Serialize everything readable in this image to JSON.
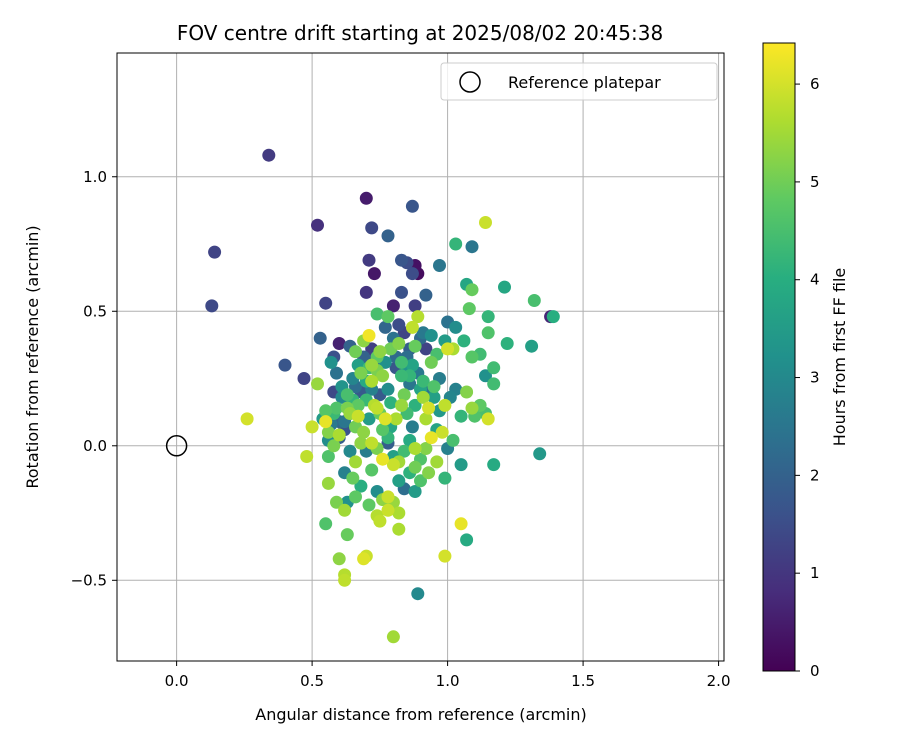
{
  "chart_data": {
    "type": "scatter",
    "title": "FOV centre drift starting at 2025/08/02 20:45:38",
    "xlabel": "Angular distance from reference (arcmin)",
    "ylabel": "Rotation from reference (arcmin)",
    "xlim": [
      -0.22,
      2.02
    ],
    "ylim": [
      -0.8,
      1.46
    ],
    "xticks": [
      0.0,
      0.5,
      1.0,
      1.5,
      2.0
    ],
    "xtick_labels": [
      "0.0",
      "0.5",
      "1.0",
      "1.5",
      "2.0"
    ],
    "yticks": [
      -0.5,
      0.0,
      0.5,
      1.0
    ],
    "ytick_labels": [
      "−0.5",
      "0.0",
      "0.5",
      "1.0"
    ],
    "grid": true,
    "colormap": "viridis",
    "colorbar": {
      "label": "Hours from first FF file",
      "range": [
        0,
        6.42
      ],
      "ticks": [
        0,
        1,
        2,
        3,
        4,
        5,
        6
      ],
      "tick_labels": [
        "0",
        "1",
        "2",
        "3",
        "4",
        "5",
        "6"
      ]
    },
    "legend": {
      "placement": "top-right",
      "entries": [
        "Reference platepar"
      ]
    },
    "reference_point": {
      "x": 0.0,
      "y": 0.0,
      "label": "Reference platepar"
    },
    "points": [
      [
        0.34,
        1.08,
        1.1
      ],
      [
        0.14,
        0.72,
        1.3
      ],
      [
        0.13,
        0.52,
        1.4
      ],
      [
        0.52,
        0.82,
        0.9
      ],
      [
        0.7,
        0.92,
        0.5
      ],
      [
        0.72,
        0.81,
        1.4
      ],
      [
        0.87,
        0.89,
        1.7
      ],
      [
        0.78,
        0.78,
        2.0
      ],
      [
        0.71,
        0.69,
        1.1
      ],
      [
        0.73,
        0.64,
        0.4
      ],
      [
        0.85,
        0.68,
        1.5
      ],
      [
        0.88,
        0.67,
        0.3
      ],
      [
        0.89,
        0.64,
        0.2
      ],
      [
        0.87,
        0.64,
        1.5
      ],
      [
        0.83,
        0.69,
        1.7
      ],
      [
        0.55,
        0.53,
        1.3
      ],
      [
        0.7,
        0.57,
        1.0
      ],
      [
        0.83,
        0.57,
        1.6
      ],
      [
        0.8,
        0.52,
        0.6
      ],
      [
        0.88,
        0.52,
        1.2
      ],
      [
        0.92,
        0.56,
        2.0
      ],
      [
        0.97,
        0.67,
        2.5
      ],
      [
        1.03,
        0.75,
        4.2
      ],
      [
        1.09,
        0.74,
        2.5
      ],
      [
        1.14,
        0.83,
        5.9
      ],
      [
        1.07,
        0.6,
        3.8
      ],
      [
        1.09,
        0.58,
        4.9
      ],
      [
        1.21,
        0.59,
        3.8
      ],
      [
        1.15,
        0.48,
        4.2
      ],
      [
        1.08,
        0.51,
        4.8
      ],
      [
        1.0,
        0.46,
        2.4
      ],
      [
        1.03,
        0.44,
        3.1
      ],
      [
        0.53,
        0.4,
        2.0
      ],
      [
        0.4,
        0.3,
        1.7
      ],
      [
        0.47,
        0.25,
        1.3
      ],
      [
        0.52,
        0.23,
        5.4
      ],
      [
        0.58,
        0.33,
        1.6
      ],
      [
        0.6,
        0.38,
        0.6
      ],
      [
        0.64,
        0.37,
        2.0
      ],
      [
        0.66,
        0.35,
        5.0
      ],
      [
        0.69,
        0.39,
        5.3
      ],
      [
        0.71,
        0.41,
        6.3
      ],
      [
        0.72,
        0.36,
        1.2
      ],
      [
        0.74,
        0.49,
        4.5
      ],
      [
        0.78,
        0.48,
        4.8
      ],
      [
        0.77,
        0.44,
        2.1
      ],
      [
        0.8,
        0.4,
        2.4
      ],
      [
        0.82,
        0.38,
        5.2
      ],
      [
        0.85,
        0.33,
        2.3
      ],
      [
        0.87,
        0.44,
        5.8
      ],
      [
        0.89,
        0.48,
        5.7
      ],
      [
        0.88,
        0.37,
        4.9
      ],
      [
        0.91,
        0.42,
        2.6
      ],
      [
        0.94,
        0.41,
        3.2
      ],
      [
        0.96,
        0.34,
        4.5
      ],
      [
        0.99,
        0.39,
        3.5
      ],
      [
        1.02,
        0.36,
        5.6
      ],
      [
        1.06,
        0.39,
        4.1
      ],
      [
        1.09,
        0.33,
        4.7
      ],
      [
        1.12,
        0.34,
        4.4
      ],
      [
        1.15,
        0.42,
        4.6
      ],
      [
        1.17,
        0.29,
        4.4
      ],
      [
        1.17,
        0.23,
        4.4
      ],
      [
        1.14,
        0.26,
        3.2
      ],
      [
        1.22,
        0.38,
        4.1
      ],
      [
        1.31,
        0.37,
        3.6
      ],
      [
        1.32,
        0.54,
        4.5
      ],
      [
        1.38,
        0.48,
        0.7
      ],
      [
        1.39,
        0.48,
        4.0
      ],
      [
        1.34,
        -0.03,
        3.4
      ],
      [
        1.17,
        -0.07,
        3.9
      ],
      [
        1.07,
        -0.35,
        3.9
      ],
      [
        1.05,
        -0.07,
        3.5
      ],
      [
        0.99,
        -0.12,
        4.2
      ],
      [
        0.96,
        -0.06,
        5.5
      ],
      [
        0.93,
        -0.1,
        5.2
      ],
      [
        0.9,
        -0.13,
        4.6
      ],
      [
        0.88,
        -0.17,
        3.5
      ],
      [
        0.89,
        -0.55,
        3.0
      ],
      [
        0.82,
        -0.25,
        5.6
      ],
      [
        0.8,
        -0.21,
        5.4
      ],
      [
        0.78,
        -0.19,
        5.9
      ],
      [
        0.75,
        -0.28,
        5.8
      ],
      [
        0.74,
        -0.26,
        5.7
      ],
      [
        0.71,
        -0.22,
        4.8
      ],
      [
        0.7,
        -0.41,
        5.9
      ],
      [
        0.69,
        -0.42,
        6.1
      ],
      [
        0.62,
        -0.48,
        5.7
      ],
      [
        0.62,
        -0.5,
        5.8
      ],
      [
        0.6,
        -0.42,
        5.3
      ],
      [
        0.63,
        -0.33,
        4.9
      ],
      [
        0.62,
        -0.24,
        5.5
      ],
      [
        0.59,
        -0.21,
        5.1
      ],
      [
        0.56,
        -0.14,
        5.4
      ],
      [
        0.55,
        -0.29,
        4.6
      ],
      [
        0.56,
        -0.04,
        4.6
      ],
      [
        0.48,
        -0.04,
        5.8
      ],
      [
        0.5,
        0.07,
        5.9
      ],
      [
        0.26,
        0.1,
        6.0
      ],
      [
        0.55,
        0.09,
        6.2
      ],
      [
        0.56,
        0.05,
        5.2
      ],
      [
        0.58,
        0.12,
        4.3
      ],
      [
        0.6,
        0.03,
        1.9
      ],
      [
        0.62,
        0.09,
        2.5
      ],
      [
        0.64,
        0.12,
        5.4
      ],
      [
        0.66,
        0.07,
        5.0
      ],
      [
        0.67,
        0.15,
        4.8
      ],
      [
        0.68,
        0.2,
        1.8
      ],
      [
        0.7,
        0.17,
        4.3
      ],
      [
        0.72,
        0.24,
        5.6
      ],
      [
        0.74,
        0.28,
        5.1
      ],
      [
        0.75,
        0.19,
        1.8
      ],
      [
        0.76,
        0.26,
        5.3
      ],
      [
        0.78,
        0.21,
        3.1
      ],
      [
        0.79,
        0.16,
        4.1
      ],
      [
        0.81,
        0.29,
        1.7
      ],
      [
        0.83,
        0.26,
        4.3
      ],
      [
        0.84,
        0.19,
        5.0
      ],
      [
        0.86,
        0.23,
        2.5
      ],
      [
        0.88,
        0.15,
        4.1
      ],
      [
        0.9,
        0.21,
        3.7
      ],
      [
        0.92,
        0.1,
        5.6
      ],
      [
        0.93,
        0.14,
        6.0
      ],
      [
        0.95,
        0.22,
        4.6
      ],
      [
        0.97,
        0.25,
        2.7
      ],
      [
        0.99,
        0.15,
        5.8
      ],
      [
        1.01,
        0.18,
        2.9
      ],
      [
        1.03,
        0.21,
        2.8
      ],
      [
        1.05,
        0.11,
        4.2
      ],
      [
        1.07,
        0.2,
        5.2
      ],
      [
        1.09,
        0.14,
        5.4
      ],
      [
        1.1,
        0.11,
        4.6
      ],
      [
        1.12,
        0.15,
        4.8
      ],
      [
        1.14,
        0.12,
        4.5
      ],
      [
        1.15,
        0.1,
        6.0
      ],
      [
        1.02,
        0.02,
        4.5
      ],
      [
        1.0,
        -0.01,
        2.8
      ],
      [
        0.98,
        0.05,
        5.9
      ],
      [
        0.96,
        0.06,
        3.7
      ],
      [
        0.94,
        0.03,
        6.2
      ],
      [
        0.92,
        -0.01,
        5.2
      ],
      [
        0.9,
        -0.05,
        4.6
      ],
      [
        0.88,
        -0.01,
        5.6
      ],
      [
        0.86,
        0.02,
        3.9
      ],
      [
        0.84,
        -0.02,
        4.4
      ],
      [
        0.82,
        -0.06,
        5.5
      ],
      [
        0.8,
        -0.04,
        3.6
      ],
      [
        0.78,
        0.03,
        4.2
      ],
      [
        0.76,
        -0.05,
        6.2
      ],
      [
        0.74,
        -0.01,
        5.1
      ],
      [
        0.72,
        0.01,
        5.8
      ],
      [
        0.7,
        -0.02,
        2.7
      ],
      [
        0.68,
        0.01,
        5.3
      ],
      [
        0.66,
        -0.06,
        5.5
      ],
      [
        0.64,
        -0.02,
        3.0
      ],
      [
        0.62,
        -0.1,
        2.8
      ],
      [
        0.6,
        0.04,
        5.6
      ],
      [
        0.58,
        0.0,
        5.1
      ],
      [
        0.56,
        0.02,
        3.1
      ],
      [
        0.54,
        0.1,
        3.5
      ],
      [
        0.57,
        0.31,
        3.2
      ],
      [
        0.59,
        0.27,
        2.4
      ],
      [
        0.61,
        0.22,
        3.3
      ],
      [
        0.63,
        0.19,
        4.5
      ],
      [
        0.65,
        0.25,
        2.9
      ],
      [
        0.67,
        0.3,
        3.6
      ],
      [
        0.69,
        0.33,
        2.0
      ],
      [
        0.71,
        0.29,
        4.4
      ],
      [
        0.73,
        0.32,
        1.6
      ],
      [
        0.75,
        0.35,
        5.3
      ],
      [
        0.77,
        0.31,
        3.2
      ],
      [
        0.79,
        0.36,
        5.0
      ],
      [
        0.81,
        0.33,
        2.2
      ],
      [
        0.83,
        0.31,
        4.4
      ],
      [
        0.85,
        0.28,
        3.3
      ],
      [
        0.87,
        0.3,
        3.7
      ],
      [
        0.89,
        0.27,
        2.6
      ],
      [
        0.91,
        0.24,
        4.3
      ],
      [
        0.93,
        0.2,
        2.4
      ],
      [
        0.95,
        0.18,
        3.6
      ],
      [
        0.97,
        0.13,
        3.4
      ],
      [
        0.91,
        0.18,
        5.5
      ],
      [
        0.87,
        0.07,
        2.7
      ],
      [
        0.85,
        0.12,
        4.4
      ],
      [
        0.83,
        0.15,
        5.4
      ],
      [
        0.81,
        0.1,
        5.6
      ],
      [
        0.79,
        0.07,
        3.8
      ],
      [
        0.77,
        0.1,
        6.1
      ],
      [
        0.75,
        0.12,
        4.9
      ],
      [
        0.73,
        0.15,
        5.7
      ],
      [
        0.71,
        0.1,
        3.5
      ],
      [
        0.69,
        0.05,
        5.3
      ],
      [
        0.67,
        0.11,
        5.9
      ],
      [
        0.65,
        0.17,
        4.2
      ],
      [
        0.63,
        0.14,
        5.1
      ],
      [
        0.61,
        0.18,
        3.0
      ],
      [
        0.59,
        0.14,
        4.6
      ],
      [
        0.57,
        0.08,
        2.6
      ],
      [
        0.55,
        0.13,
        4.7
      ],
      [
        0.66,
        0.22,
        2.3
      ],
      [
        0.68,
        0.27,
        5.1
      ],
      [
        0.7,
        0.24,
        3.9
      ],
      [
        0.72,
        0.21,
        2.8
      ],
      [
        0.74,
        0.14,
        5.8
      ],
      [
        0.76,
        0.06,
        4.7
      ],
      [
        0.78,
        0.01,
        1.9
      ],
      [
        0.8,
        -0.07,
        5.9
      ],
      [
        0.82,
        -0.13,
        3.6
      ],
      [
        0.84,
        -0.16,
        2.3
      ],
      [
        0.86,
        -0.1,
        4.1
      ],
      [
        0.88,
        -0.08,
        5.0
      ],
      [
        0.66,
        -0.19,
        4.8
      ],
      [
        0.68,
        -0.15,
        4.0
      ],
      [
        0.72,
        -0.09,
        4.7
      ],
      [
        0.74,
        -0.17,
        3.1
      ],
      [
        0.76,
        -0.2,
        5.3
      ],
      [
        0.78,
        -0.24,
        5.9
      ],
      [
        0.63,
        -0.21,
        3.2
      ],
      [
        0.65,
        -0.12,
        4.9
      ],
      [
        0.8,
        -0.71,
        5.5
      ],
      [
        0.82,
        -0.31,
        5.6
      ],
      [
        0.99,
        -0.41,
        6.0
      ],
      [
        1.05,
        -0.29,
        6.2
      ],
      [
        1.0,
        0.36,
        6.0
      ],
      [
        0.72,
        0.3,
        5.4
      ],
      [
        0.74,
        0.33,
        4.8
      ],
      [
        0.86,
        0.26,
        4.2
      ],
      [
        0.94,
        0.31,
        5.0
      ],
      [
        0.58,
        0.2,
        1.4
      ],
      [
        0.6,
        0.09,
        2.1
      ],
      [
        0.62,
        0.06,
        1.6
      ],
      [
        0.64,
        0.12,
        1.8
      ],
      [
        0.92,
        0.36,
        1.3
      ],
      [
        0.9,
        0.4,
        2.2
      ],
      [
        0.86,
        0.36,
        1.9
      ],
      [
        0.84,
        0.42,
        1.3
      ],
      [
        0.82,
        0.45,
        1.5
      ]
    ]
  }
}
